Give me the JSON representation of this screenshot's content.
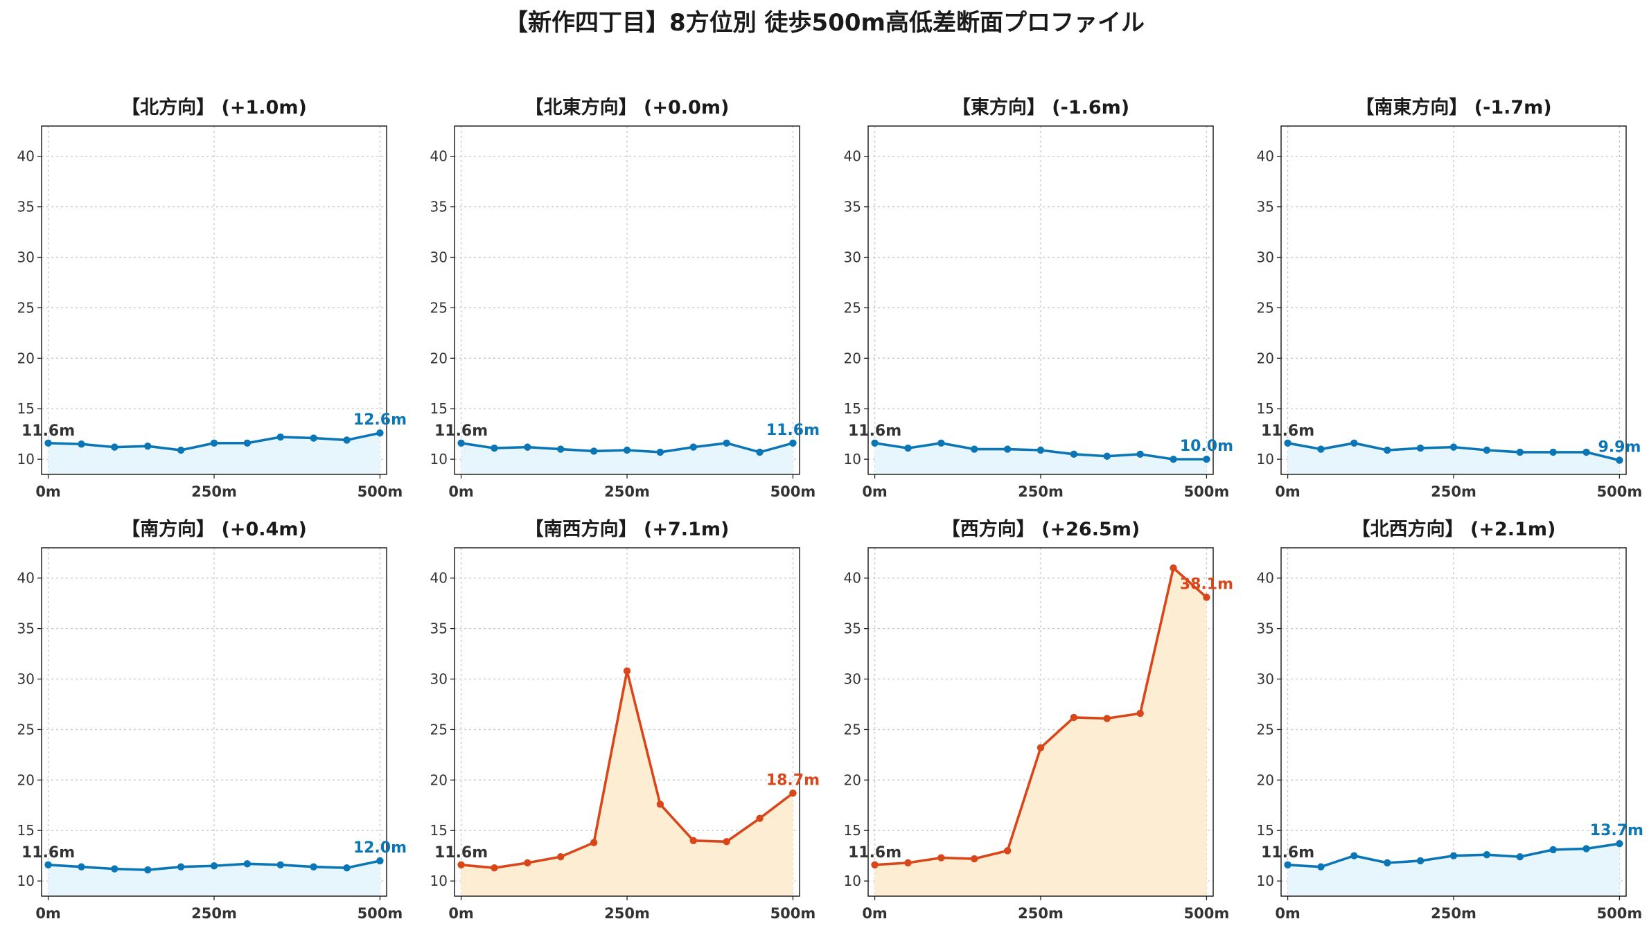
{
  "title": "【新作四丁目】8方位別 徒歩500m高低差断面プロファイル",
  "colors": {
    "flat_line": "#0b76b5",
    "flat_fill": "#e7f5fc",
    "steep_line": "#d8461a",
    "steep_fill": "#fdedd3"
  },
  "chart_data": [
    {
      "type": "area",
      "title": "【北方向】 (+1.0m)",
      "x": [
        0,
        50,
        100,
        150,
        200,
        250,
        300,
        350,
        400,
        450,
        500
      ],
      "y": [
        11.6,
        11.5,
        11.2,
        11.3,
        10.9,
        11.6,
        11.6,
        12.2,
        12.1,
        11.9,
        12.6
      ],
      "xticks": [
        0,
        250,
        500
      ],
      "xtick_labels": [
        "0m",
        "250m",
        "500m"
      ],
      "yticks": [
        10,
        15,
        20,
        25,
        30,
        35,
        40
      ],
      "xlim": [
        -10,
        510
      ],
      "ylim": [
        8.5,
        43
      ],
      "start_label": "11.6m",
      "end_label": "12.6m",
      "style": "flat",
      "grid": true
    },
    {
      "type": "area",
      "title": "【北東方向】 (+0.0m)",
      "x": [
        0,
        50,
        100,
        150,
        200,
        250,
        300,
        350,
        400,
        450,
        500
      ],
      "y": [
        11.6,
        11.1,
        11.2,
        11.0,
        10.8,
        10.9,
        10.7,
        11.2,
        11.6,
        10.7,
        11.6
      ],
      "xticks": [
        0,
        250,
        500
      ],
      "xtick_labels": [
        "0m",
        "250m",
        "500m"
      ],
      "yticks": [
        10,
        15,
        20,
        25,
        30,
        35,
        40
      ],
      "xlim": [
        -10,
        510
      ],
      "ylim": [
        8.5,
        43
      ],
      "start_label": "11.6m",
      "end_label": "11.6m",
      "style": "flat",
      "grid": true
    },
    {
      "type": "area",
      "title": "【東方向】 (-1.6m)",
      "x": [
        0,
        50,
        100,
        150,
        200,
        250,
        300,
        350,
        400,
        450,
        500
      ],
      "y": [
        11.6,
        11.1,
        11.6,
        11.0,
        11.0,
        10.9,
        10.5,
        10.3,
        10.5,
        10.0,
        10.0
      ],
      "xticks": [
        0,
        250,
        500
      ],
      "xtick_labels": [
        "0m",
        "250m",
        "500m"
      ],
      "yticks": [
        10,
        15,
        20,
        25,
        30,
        35,
        40
      ],
      "xlim": [
        -10,
        510
      ],
      "ylim": [
        8.5,
        43
      ],
      "start_label": "11.6m",
      "end_label": "10.0m",
      "style": "flat",
      "grid": true
    },
    {
      "type": "area",
      "title": "【南東方向】 (-1.7m)",
      "x": [
        0,
        50,
        100,
        150,
        200,
        250,
        300,
        350,
        400,
        450,
        500
      ],
      "y": [
        11.6,
        11.0,
        11.6,
        10.9,
        11.1,
        11.2,
        10.9,
        10.7,
        10.7,
        10.7,
        9.9
      ],
      "xticks": [
        0,
        250,
        500
      ],
      "xtick_labels": [
        "0m",
        "250m",
        "500m"
      ],
      "yticks": [
        10,
        15,
        20,
        25,
        30,
        35,
        40
      ],
      "xlim": [
        -10,
        510
      ],
      "ylim": [
        8.5,
        43
      ],
      "start_label": "11.6m",
      "end_label": "9.9m",
      "style": "flat",
      "grid": true
    },
    {
      "type": "area",
      "title": "【南方向】 (+0.4m)",
      "x": [
        0,
        50,
        100,
        150,
        200,
        250,
        300,
        350,
        400,
        450,
        500
      ],
      "y": [
        11.6,
        11.4,
        11.2,
        11.1,
        11.4,
        11.5,
        11.7,
        11.6,
        11.4,
        11.3,
        12.0
      ],
      "xticks": [
        0,
        250,
        500
      ],
      "xtick_labels": [
        "0m",
        "250m",
        "500m"
      ],
      "yticks": [
        10,
        15,
        20,
        25,
        30,
        35,
        40
      ],
      "xlim": [
        -10,
        510
      ],
      "ylim": [
        8.5,
        43
      ],
      "start_label": "11.6m",
      "end_label": "12.0m",
      "style": "flat",
      "grid": true
    },
    {
      "type": "area",
      "title": "【南西方向】 (+7.1m)",
      "x": [
        0,
        50,
        100,
        150,
        200,
        250,
        300,
        350,
        400,
        450,
        500
      ],
      "y": [
        11.6,
        11.3,
        11.8,
        12.4,
        13.8,
        30.8,
        17.6,
        14.0,
        13.9,
        16.2,
        18.7
      ],
      "xticks": [
        0,
        250,
        500
      ],
      "xtick_labels": [
        "0m",
        "250m",
        "500m"
      ],
      "yticks": [
        10,
        15,
        20,
        25,
        30,
        35,
        40
      ],
      "xlim": [
        -10,
        510
      ],
      "ylim": [
        8.5,
        43
      ],
      "start_label": "11.6m",
      "end_label": "18.7m",
      "style": "steep",
      "grid": true
    },
    {
      "type": "area",
      "title": "【西方向】 (+26.5m)",
      "x": [
        0,
        50,
        100,
        150,
        200,
        250,
        300,
        350,
        400,
        450,
        500
      ],
      "y": [
        11.6,
        11.8,
        12.3,
        12.2,
        13.0,
        23.2,
        26.2,
        26.1,
        26.6,
        41.0,
        38.1
      ],
      "xticks": [
        0,
        250,
        500
      ],
      "xtick_labels": [
        "0m",
        "250m",
        "500m"
      ],
      "yticks": [
        10,
        15,
        20,
        25,
        30,
        35,
        40
      ],
      "xlim": [
        -10,
        510
      ],
      "ylim": [
        8.5,
        43
      ],
      "start_label": "11.6m",
      "end_label": "38.1m",
      "style": "steep",
      "grid": true
    },
    {
      "type": "area",
      "title": "【北西方向】 (+2.1m)",
      "x": [
        0,
        50,
        100,
        150,
        200,
        250,
        300,
        350,
        400,
        450,
        500
      ],
      "y": [
        11.6,
        11.4,
        12.5,
        11.8,
        12.0,
        12.5,
        12.6,
        12.4,
        13.1,
        13.2,
        13.7
      ],
      "xticks": [
        0,
        250,
        500
      ],
      "xtick_labels": [
        "0m",
        "250m",
        "500m"
      ],
      "yticks": [
        10,
        15,
        20,
        25,
        30,
        35,
        40
      ],
      "xlim": [
        -10,
        510
      ],
      "ylim": [
        8.5,
        43
      ],
      "start_label": "11.6m",
      "end_label": "13.7m",
      "style": "steep_never",
      "grid": true
    }
  ]
}
